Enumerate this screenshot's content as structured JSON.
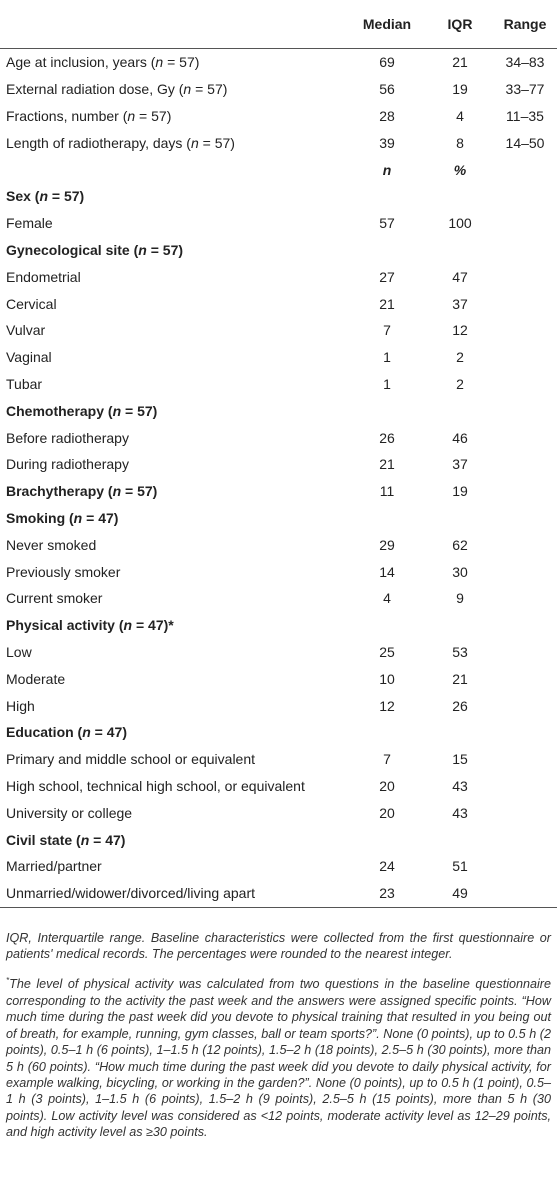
{
  "table": {
    "header": [
      "Median",
      "IQR",
      "Range"
    ],
    "continuous": [
      {
        "label": "Age at inclusion, years (n = 57)",
        "cells": [
          69,
          21,
          "34–83"
        ]
      },
      {
        "label": "External radiation dose, Gy (n = 57)",
        "cells": [
          56,
          19,
          "33–77"
        ]
      },
      {
        "label": "Fractions, number (n = 57)",
        "cells": [
          28,
          4,
          "11–35"
        ]
      },
      {
        "label": "Length of radiotherapy, days (n = 57)",
        "cells": [
          39,
          8,
          "14–50"
        ]
      }
    ],
    "subheader": [
      "n",
      "%"
    ],
    "sections": [
      {
        "title": "Sex (n = 57)",
        "rows": [
          {
            "label": "Female",
            "cells": [
              57,
              100
            ]
          }
        ]
      },
      {
        "title": "Gynecological site (n = 57)",
        "rows": [
          {
            "label": "Endometrial",
            "cells": [
              27,
              47
            ]
          },
          {
            "label": "Cervical",
            "cells": [
              21,
              37
            ]
          },
          {
            "label": "Vulvar",
            "cells": [
              7,
              12
            ]
          },
          {
            "label": "Vaginal",
            "cells": [
              1,
              2
            ]
          },
          {
            "label": "Tubar",
            "cells": [
              1,
              2
            ]
          }
        ]
      },
      {
        "title": "Chemotherapy (n = 57)",
        "rows": [
          {
            "label": "Before radiotherapy",
            "cells": [
              26,
              46
            ]
          },
          {
            "label": "During radiotherapy",
            "cells": [
              21,
              37
            ]
          }
        ]
      },
      {
        "title": "Brachytherapy (n = 57)",
        "cells": [
          11,
          19
        ],
        "rows": []
      },
      {
        "title": "Smoking (n = 47)",
        "rows": [
          {
            "label": "Never smoked",
            "cells": [
              29,
              62
            ]
          },
          {
            "label": "Previously smoker",
            "cells": [
              14,
              30
            ]
          },
          {
            "label": "Current smoker",
            "cells": [
              4,
              9
            ]
          }
        ]
      },
      {
        "title": "Physical activity (n = 47)*",
        "rows": [
          {
            "label": "Low",
            "cells": [
              25,
              53
            ]
          },
          {
            "label": "Moderate",
            "cells": [
              10,
              21
            ]
          },
          {
            "label": "High",
            "cells": [
              12,
              26
            ]
          }
        ]
      },
      {
        "title": "Education (n = 47)",
        "rows": [
          {
            "label": "Primary and middle school or equivalent",
            "cells": [
              7,
              15
            ]
          },
          {
            "label": "High school, technical high school, or equivalent",
            "cells": [
              20,
              43
            ]
          },
          {
            "label": "University or college",
            "cells": [
              20,
              43
            ]
          }
        ]
      },
      {
        "title": "Civil state (n = 47)",
        "rows": [
          {
            "label": "Married/partner",
            "cells": [
              24,
              51
            ]
          },
          {
            "label": "Unmarried/widower/divorced/living apart",
            "cells": [
              23,
              49
            ]
          }
        ]
      }
    ]
  },
  "notes": {
    "abbreviations": "IQR, Interquartile range. Baseline characteristics were collected from the first questionnaire or patients' medical records. The percentages were rounded to the nearest integer.",
    "footnote_mark": "*",
    "footnote": "The level of physical activity was calculated from two questions in the baseline questionnaire corresponding to the activity the past week and the answers were assigned specific points. “How much time during the past week did you devote to physical training that resulted in you being out of breath, for example, running, gym classes, ball or team sports?”. None (0 points), up to 0.5 h (2 points), 0.5–1 h (6 points), 1–1.5 h (12 points), 1.5–2 h (18 points), 2.5–5 h (30 points), more than 5 h (60 points). “How much time during the past week did you devote to daily physical activity, for example walking, bicycling, or working in the garden?”. None (0 points), up to 0.5 h (1 point), 0.5–1 h (3 points), 1–1.5 h (6 points), 1.5–2 h (9 points), 2.5–5 h (15 points), more than 5 h (30 points). Low activity level was considered as <12 points, moderate activity level as 12–29 points, and high activity level as ≥30 points."
  }
}
